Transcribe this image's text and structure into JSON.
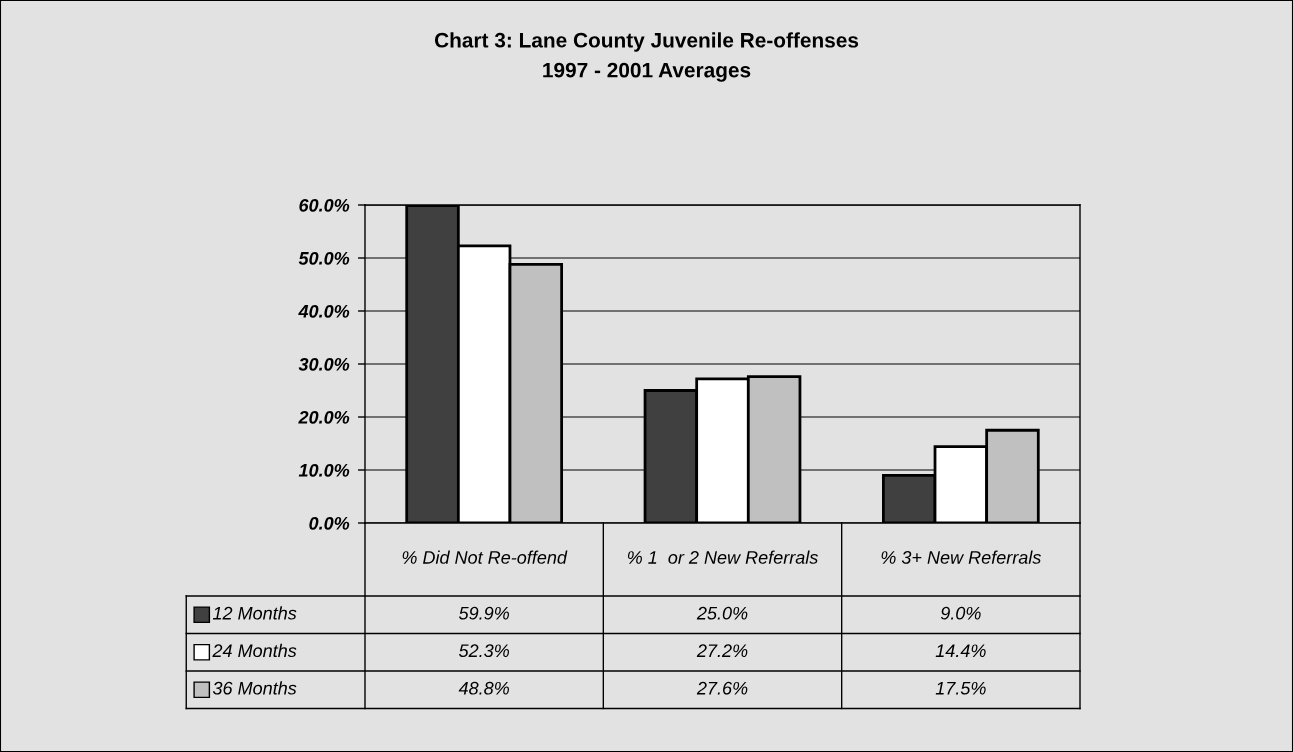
{
  "chart_data": {
    "type": "bar",
    "title": "Chart 3: Lane County Juvenile Re-offenses",
    "subtitle": "1997 - 2001 Averages",
    "categories": [
      "% Did Not Re-offend",
      "% 1  or 2 New Referrals",
      "% 3+ New Referrals"
    ],
    "series": [
      {
        "name": "12 Months",
        "color": "#404040",
        "values": [
          59.9,
          25.0,
          9.0
        ],
        "value_labels": [
          "59.9%",
          "25.0%",
          "9.0%"
        ]
      },
      {
        "name": "24 Months",
        "color": "#ffffff",
        "values": [
          52.3,
          27.2,
          14.4
        ],
        "value_labels": [
          "52.3%",
          "27.2%",
          "14.4%"
        ]
      },
      {
        "name": "36 Months",
        "color": "#c0c0c0",
        "values": [
          48.8,
          27.6,
          17.5
        ],
        "value_labels": [
          "48.8%",
          "27.6%",
          "17.5%"
        ]
      }
    ],
    "ylim": [
      0,
      60
    ],
    "yticks": [
      {
        "value": 0,
        "label": "0.0%"
      },
      {
        "value": 10,
        "label": "10.0%"
      },
      {
        "value": 20,
        "label": "20.0%"
      },
      {
        "value": 30,
        "label": "30.0%"
      },
      {
        "value": 40,
        "label": "40.0%"
      },
      {
        "value": 50,
        "label": "50.0%"
      },
      {
        "value": 60,
        "label": "60.0%"
      }
    ],
    "grid": "y",
    "legend": "bottom left"
  }
}
